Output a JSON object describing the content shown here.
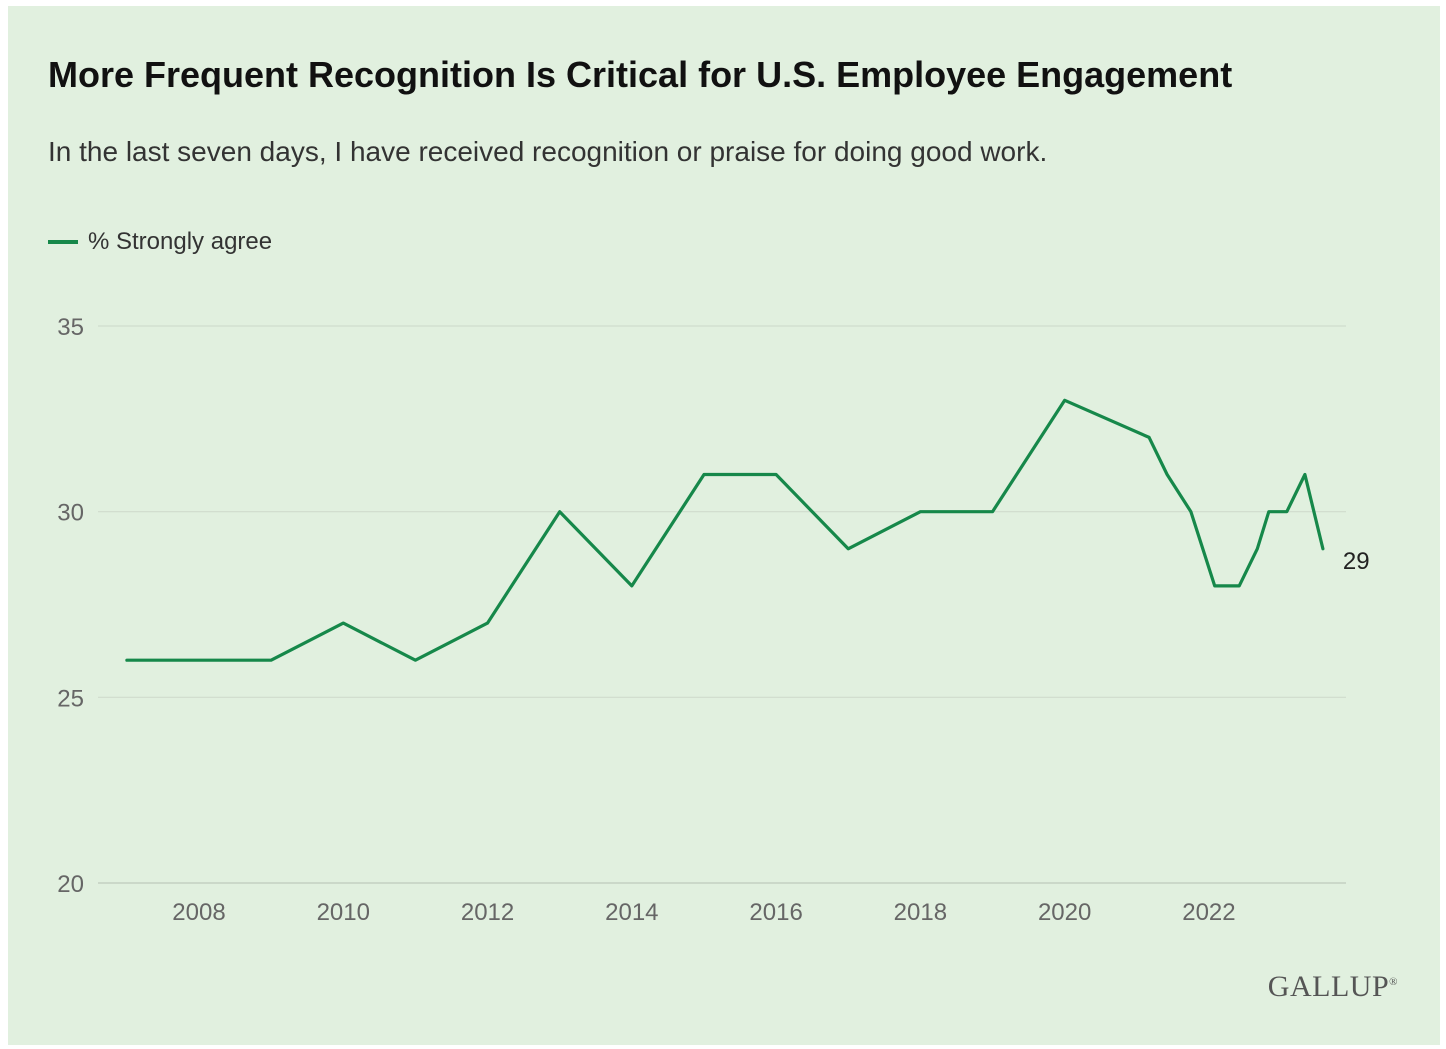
{
  "chart_data": {
    "type": "line",
    "title": "More Frequent Recognition Is Critical for U.S. Employee Engagement",
    "subtitle": "In the last seven days, I have received recognition or praise for doing good work.",
    "legend": "top-left",
    "grid": true,
    "ylim": [
      20,
      35
    ],
    "yticks": [
      "20",
      "25",
      "30",
      "35"
    ],
    "xticks": [
      "2008",
      "2010",
      "2012",
      "2014",
      "2016",
      "2018",
      "2020",
      "2022"
    ],
    "xlim": [
      2006.6,
      2023.9
    ],
    "series": [
      {
        "name": "% Strongly agree",
        "color": "#16884a",
        "x": [
          2007,
          2009,
          2010,
          2011,
          2012,
          2013,
          2014,
          2015,
          2016,
          2017,
          2018,
          2019,
          2020,
          2021.17,
          2021.42,
          2021.75,
          2022.08,
          2022.42,
          2022.67,
          2022.83,
          2023.08,
          2023.33,
          2023.58
        ],
        "values": [
          26,
          26,
          27,
          26,
          27,
          30,
          28,
          31,
          31,
          29,
          30,
          30,
          33,
          32,
          31,
          30,
          28,
          28,
          29,
          30,
          30,
          31,
          29
        ]
      }
    ],
    "end_label": "29"
  },
  "brand": "GALLUP",
  "brand_mark": "®"
}
